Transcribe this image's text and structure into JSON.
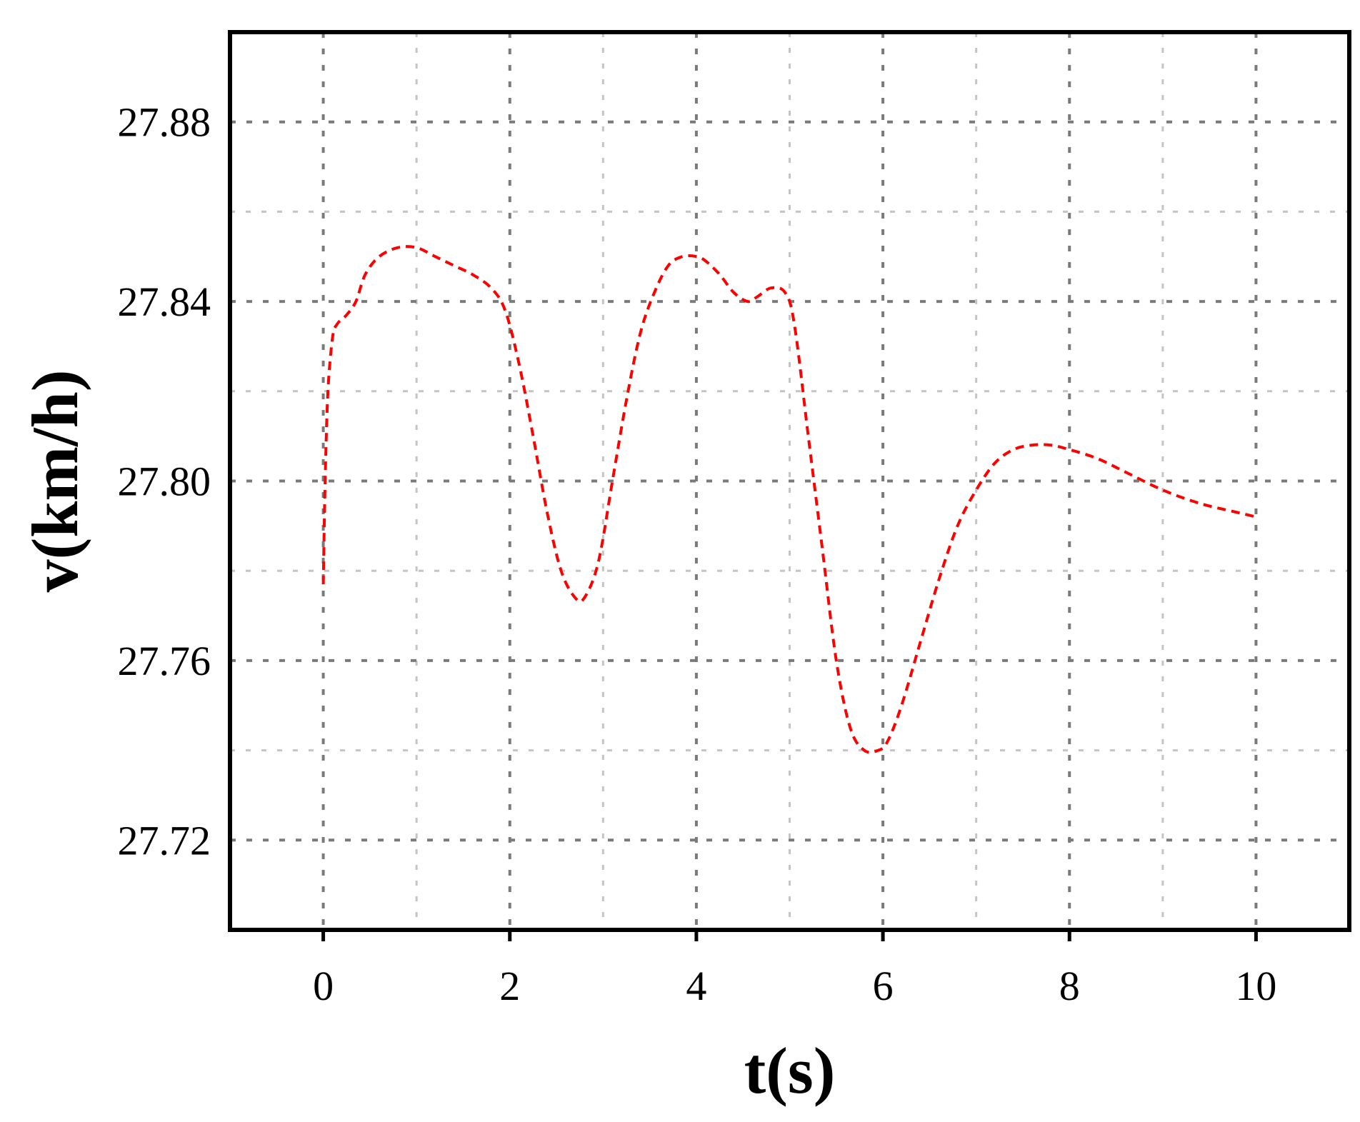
{
  "chart_data": {
    "type": "line",
    "xlabel": "t(s)",
    "ylabel": "v(km/h)",
    "xlim": [
      -1,
      11
    ],
    "ylim": [
      27.7,
      27.9
    ],
    "xticks": [
      0,
      2,
      4,
      6,
      8,
      10
    ],
    "xtick_labels": [
      "0",
      "2",
      "4",
      "6",
      "8",
      "10"
    ],
    "yticks": [
      27.72,
      27.76,
      27.8,
      27.84,
      27.88
    ],
    "ytick_labels": [
      "27.72",
      "27.76",
      "27.80",
      "27.84",
      "27.88"
    ],
    "grid": true,
    "series": [
      {
        "color": "#ff0000",
        "line_style": "dashed",
        "x": [
          0.0,
          0.02,
          0.05,
          0.1,
          0.15,
          0.25,
          0.35,
          0.45,
          0.6,
          0.8,
          1.0,
          1.2,
          1.4,
          1.6,
          1.8,
          1.95,
          2.1,
          2.25,
          2.4,
          2.55,
          2.7,
          2.8,
          2.95,
          3.1,
          3.25,
          3.4,
          3.55,
          3.7,
          3.85,
          4.0,
          4.1,
          4.25,
          4.4,
          4.55,
          4.65,
          4.8,
          4.95,
          5.05,
          5.2,
          5.35,
          5.5,
          5.65,
          5.8,
          5.95,
          6.05,
          6.2,
          6.4,
          6.6,
          6.8,
          7.0,
          7.2,
          7.4,
          7.6,
          7.8,
          8.0,
          8.3,
          8.6,
          9.0,
          9.4,
          9.8,
          10.0
        ],
        "y": [
          27.777,
          27.8,
          27.82,
          27.832,
          27.835,
          27.837,
          27.84,
          27.846,
          27.85,
          27.852,
          27.852,
          27.85,
          27.848,
          27.846,
          27.843,
          27.838,
          27.826,
          27.81,
          27.793,
          27.78,
          27.774,
          27.774,
          27.782,
          27.8,
          27.818,
          27.833,
          27.842,
          27.848,
          27.85,
          27.85,
          27.849,
          27.846,
          27.842,
          27.84,
          27.841,
          27.843,
          27.842,
          27.835,
          27.81,
          27.785,
          27.76,
          27.745,
          27.74,
          27.74,
          27.742,
          27.75,
          27.764,
          27.778,
          27.79,
          27.798,
          27.804,
          27.807,
          27.808,
          27.808,
          27.807,
          27.805,
          27.802,
          27.798,
          27.795,
          27.793,
          27.792
        ]
      }
    ]
  }
}
